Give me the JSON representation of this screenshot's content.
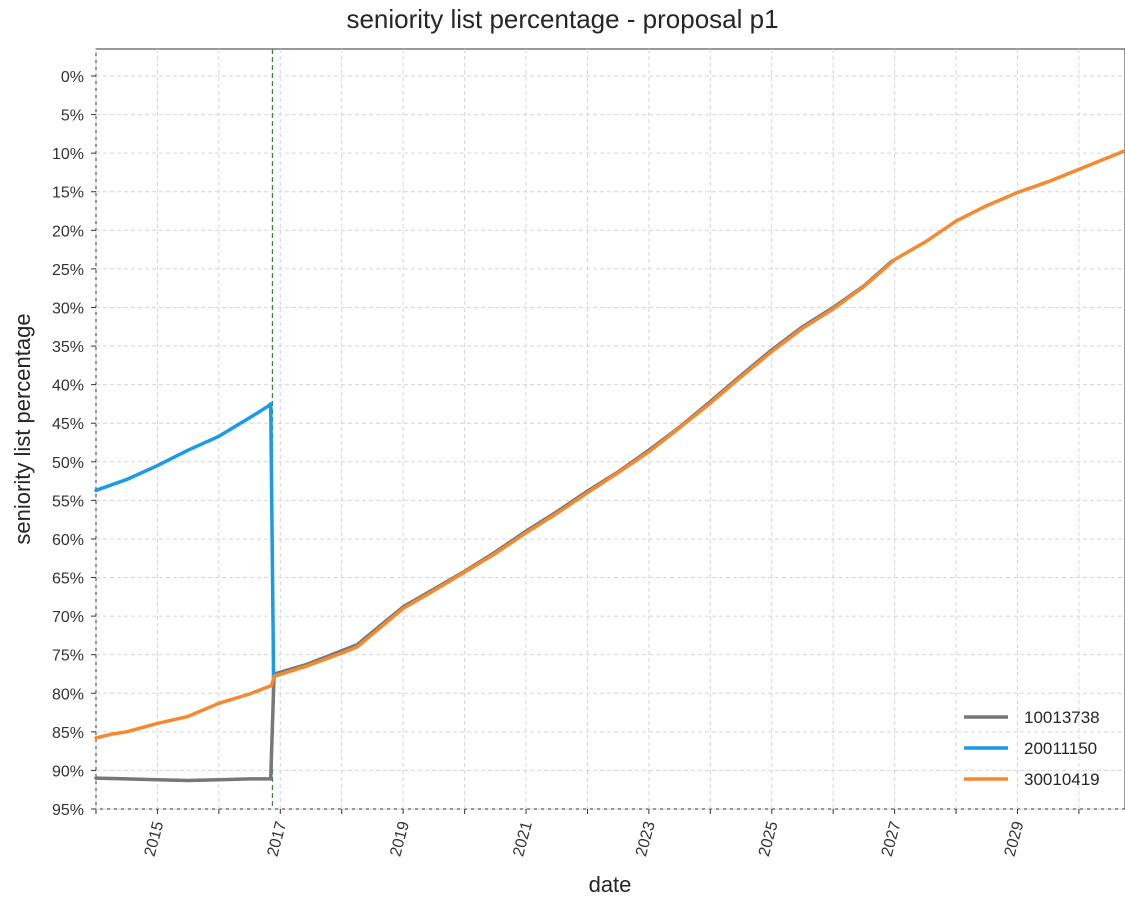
{
  "chart_data": {
    "type": "line",
    "title": "seniority list percentage - proposal p1",
    "xlabel": "date",
    "ylabel": "seniority list percentage",
    "x_axis": {
      "kind": "date",
      "range": [
        "2014-01-01",
        "2030-10-01"
      ],
      "tick_labels": [
        "2015",
        "2017",
        "2019",
        "2021",
        "2023",
        "2025",
        "2027",
        "2029"
      ]
    },
    "y_axis": {
      "inverted": true,
      "range": [
        -0.035,
        0.95
      ],
      "tick_values": [
        0,
        0.05,
        0.1,
        0.15,
        0.2,
        0.25,
        0.3,
        0.35,
        0.4,
        0.45,
        0.5,
        0.55,
        0.6,
        0.65,
        0.7,
        0.75,
        0.8,
        0.85,
        0.9,
        0.95
      ],
      "tick_labels": [
        "0%",
        "5%",
        "10%",
        "15%",
        "20%",
        "25%",
        "30%",
        "35%",
        "40%",
        "45%",
        "50%",
        "55%",
        "60%",
        "65%",
        "70%",
        "75%",
        "80%",
        "85%",
        "90%",
        "95%"
      ]
    },
    "grid": true,
    "vertical_reference_line": {
      "x": "2016-11-15",
      "style": "dashed",
      "color": "#2e8b2e"
    },
    "legend_position": "lower-right",
    "series": [
      {
        "name": "10013738",
        "color": "#777777",
        "points": [
          [
            "2014-01-01",
            0.91
          ],
          [
            "2014-07-01",
            0.911
          ],
          [
            "2015-01-01",
            0.912
          ],
          [
            "2015-07-01",
            0.913
          ],
          [
            "2016-01-01",
            0.912
          ],
          [
            "2016-07-01",
            0.911
          ],
          [
            "2016-10-15",
            0.911
          ],
          [
            "2016-11-05",
            0.911
          ],
          [
            "2016-11-25",
            0.775
          ],
          [
            "2017-06-01",
            0.763
          ],
          [
            "2018-01-01",
            0.745
          ],
          [
            "2018-04-01",
            0.737
          ],
          [
            "2019-01-01",
            0.688
          ],
          [
            "2019-07-01",
            0.665
          ],
          [
            "2020-01-01",
            0.642
          ],
          [
            "2020-07-01",
            0.617
          ],
          [
            "2021-01-01",
            0.59
          ],
          [
            "2021-07-01",
            0.565
          ],
          [
            "2022-01-01",
            0.538
          ],
          [
            "2022-07-01",
            0.513
          ],
          [
            "2023-01-01",
            0.485
          ],
          [
            "2023-07-01",
            0.455
          ],
          [
            "2024-01-01",
            0.422
          ],
          [
            "2024-07-01",
            0.388
          ],
          [
            "2025-01-01",
            0.355
          ],
          [
            "2025-07-01",
            0.325
          ],
          [
            "2026-01-01",
            0.3
          ],
          [
            "2026-07-01",
            0.272
          ],
          [
            "2026-12-15",
            0.24
          ]
        ]
      },
      {
        "name": "20011150",
        "color": "#1a9be8",
        "points": [
          [
            "2014-01-01",
            0.537
          ],
          [
            "2014-07-01",
            0.523
          ],
          [
            "2015-01-01",
            0.505
          ],
          [
            "2015-07-01",
            0.485
          ],
          [
            "2016-01-01",
            0.467
          ],
          [
            "2016-07-01",
            0.443
          ],
          [
            "2016-10-20",
            0.428
          ],
          [
            "2016-11-05",
            0.425
          ],
          [
            "2016-11-22",
            0.78
          ]
        ]
      },
      {
        "name": "30010419",
        "color": "#f5892f",
        "points": [
          [
            "2014-01-01",
            0.858
          ],
          [
            "2014-04-01",
            0.853
          ],
          [
            "2014-07-01",
            0.85
          ],
          [
            "2015-01-01",
            0.839
          ],
          [
            "2015-07-01",
            0.83
          ],
          [
            "2016-01-01",
            0.813
          ],
          [
            "2016-07-01",
            0.801
          ],
          [
            "2016-11-10",
            0.79
          ],
          [
            "2016-11-25",
            0.778
          ],
          [
            "2017-06-01",
            0.765
          ],
          [
            "2018-01-01",
            0.748
          ],
          [
            "2018-04-01",
            0.74
          ],
          [
            "2019-01-01",
            0.69
          ],
          [
            "2019-07-01",
            0.667
          ],
          [
            "2020-01-01",
            0.643
          ],
          [
            "2020-07-01",
            0.619
          ],
          [
            "2021-01-01",
            0.592
          ],
          [
            "2021-07-01",
            0.567
          ],
          [
            "2022-01-01",
            0.54
          ],
          [
            "2022-07-01",
            0.514
          ],
          [
            "2023-01-01",
            0.487
          ],
          [
            "2023-07-01",
            0.456
          ],
          [
            "2024-01-01",
            0.424
          ],
          [
            "2024-07-01",
            0.39
          ],
          [
            "2025-01-01",
            0.357
          ],
          [
            "2025-07-01",
            0.327
          ],
          [
            "2026-01-01",
            0.302
          ],
          [
            "2026-07-01",
            0.273
          ],
          [
            "2027-01-01",
            0.238
          ],
          [
            "2027-07-01",
            0.215
          ],
          [
            "2028-01-01",
            0.188
          ],
          [
            "2028-07-01",
            0.168
          ],
          [
            "2029-01-01",
            0.151
          ],
          [
            "2029-07-01",
            0.137
          ],
          [
            "2030-01-01",
            0.121
          ],
          [
            "2030-10-01",
            0.097
          ]
        ]
      }
    ]
  }
}
